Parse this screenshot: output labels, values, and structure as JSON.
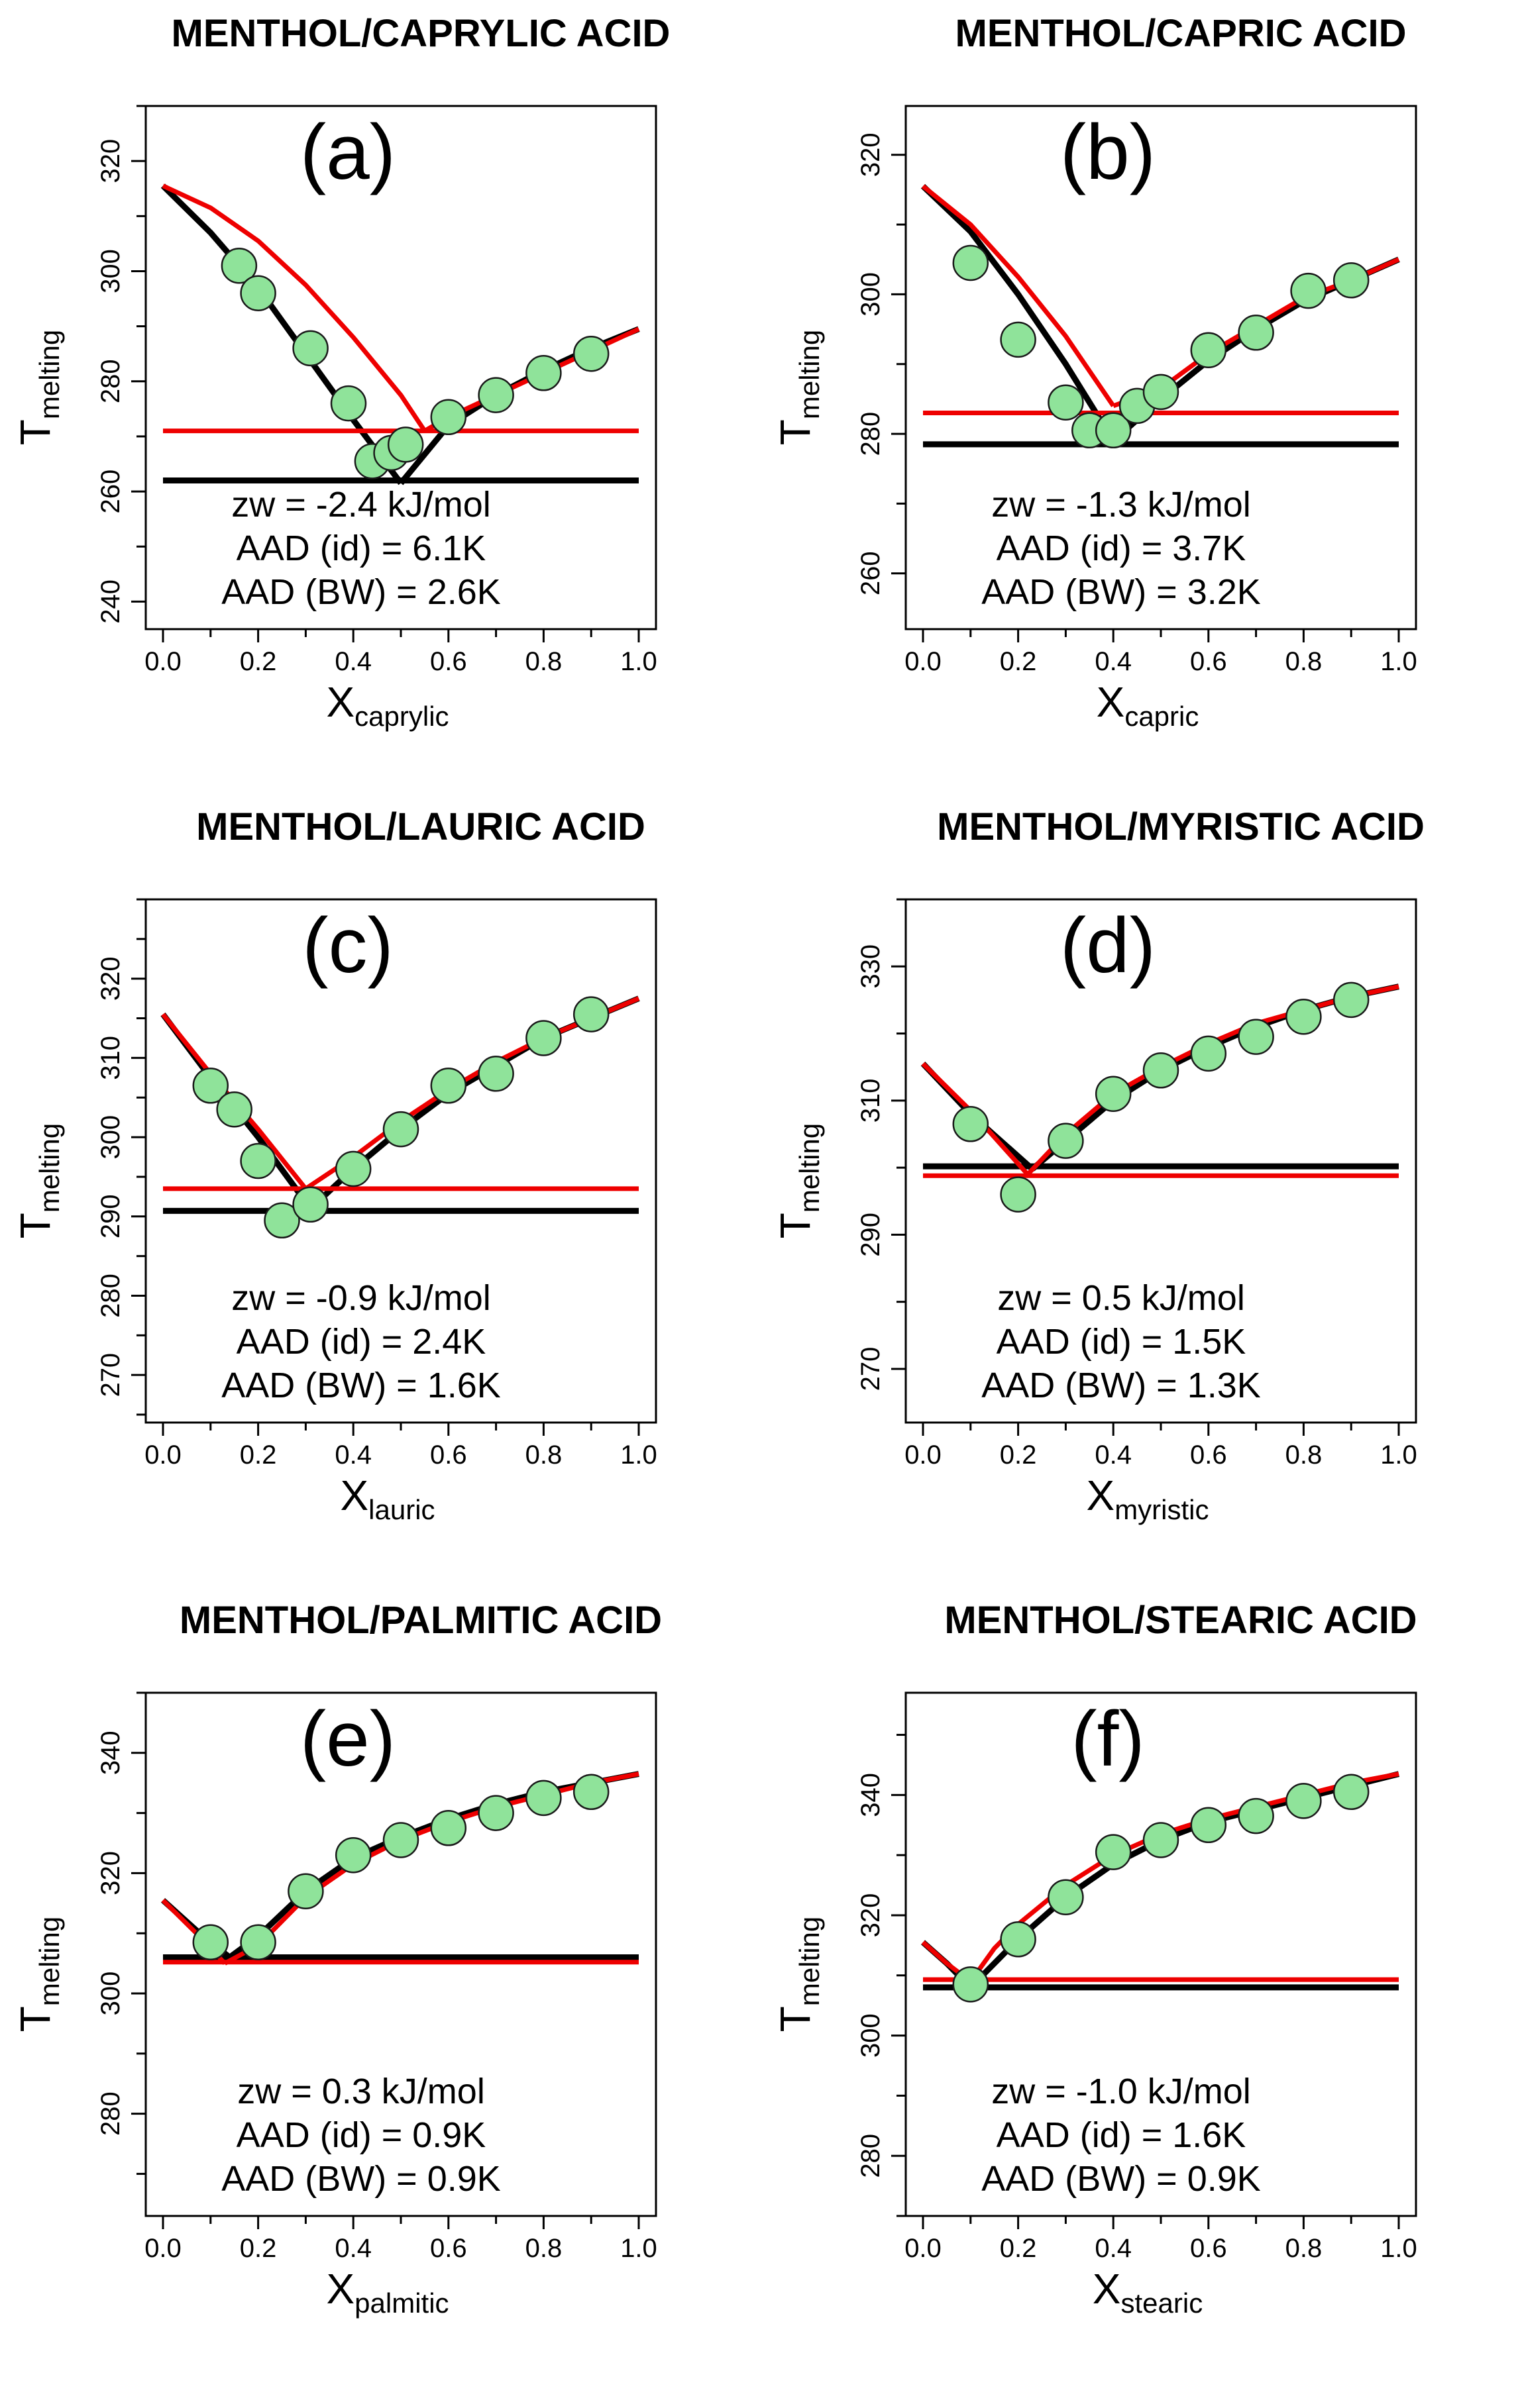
{
  "figure": {
    "layout": "3x2 grid of solid-liquid phase diagrams"
  },
  "chart_data": [
    {
      "type": "line",
      "panel": "(a)",
      "title": "MENTHOL/CAPRYLIC ACID",
      "ylabel": {
        "main": "T",
        "sub": "melting"
      },
      "xlabel": {
        "main": "X",
        "sub": "caprylic"
      },
      "xlim": [
        0,
        1
      ],
      "ylim": [
        235,
        330
      ],
      "xticks": [
        "0.0",
        "0.2",
        "0.4",
        "0.6",
        "0.8",
        "1.0"
      ],
      "yticks": [
        240,
        260,
        280,
        300,
        320
      ],
      "annotations": [
        "zw = -2.4 kJ/mol",
        "AAD (id)  = 6.1K",
        "AAD (BW)  = 2.6K"
      ],
      "series": [
        {
          "name": "ideal liquidus (menthol side)",
          "color": "#ee0000",
          "x": [
            0,
            0.1,
            0.2,
            0.3,
            0.4,
            0.5,
            0.55
          ],
          "y": [
            315.5,
            311.5,
            305.5,
            297.5,
            288,
            277.5,
            271
          ]
        },
        {
          "name": "ideal liquidus (acid side)",
          "color": "#ee0000",
          "x": [
            0.55,
            0.6,
            0.7,
            0.8,
            0.9,
            1.0
          ],
          "y": [
            271,
            273.5,
            277.5,
            281.5,
            285.5,
            289.5
          ]
        },
        {
          "name": "ideal eutectic",
          "color": "#ee0000",
          "x": [
            0.0,
            1.0
          ],
          "y": [
            271,
            271
          ]
        },
        {
          "name": "BW liquidus (menthol side)",
          "color": "#000000",
          "x": [
            0,
            0.1,
            0.2,
            0.3,
            0.4,
            0.5
          ],
          "y": [
            315.5,
            307,
            297,
            285,
            273,
            261.5
          ]
        },
        {
          "name": "BW liquidus (acid side)",
          "color": "#000000",
          "x": [
            0.5,
            0.6,
            0.7,
            0.8,
            0.9,
            1.0
          ],
          "y": [
            261.5,
            272,
            277.5,
            282,
            286,
            289.5
          ]
        },
        {
          "name": "BW eutectic",
          "color": "#000000",
          "x": [
            0.0,
            1.0
          ],
          "y": [
            262,
            262
          ]
        },
        {
          "name": "experimental",
          "type": "scatter",
          "color": "#8fe39a",
          "x": [
            0.16,
            0.2,
            0.31,
            0.39,
            0.44,
            0.48,
            0.51,
            0.6,
            0.7,
            0.8,
            0.9
          ],
          "y": [
            301,
            296,
            286,
            276,
            265.5,
            267,
            268.5,
            273.5,
            277.5,
            281.5,
            285
          ]
        }
      ]
    },
    {
      "type": "line",
      "panel": "(b)",
      "title": "MENTHOL/CAPRIC ACID",
      "ylabel": {
        "main": "T",
        "sub": "melting"
      },
      "xlabel": {
        "main": "X",
        "sub": "capric"
      },
      "xlim": [
        0,
        1
      ],
      "ylim": [
        252,
        327
      ],
      "xticks": [
        "0.0",
        "0.2",
        "0.4",
        "0.6",
        "0.8",
        "1.0"
      ],
      "yticks": [
        260,
        280,
        300,
        320
      ],
      "annotations": [
        "zw = -1.3 kJ/mol",
        "AAD (id)  = 3.7K",
        "AAD (BW)  = 3.2K"
      ],
      "series": [
        {
          "name": "ideal liquidus (menthol side)",
          "color": "#ee0000",
          "x": [
            0,
            0.1,
            0.2,
            0.3,
            0.4
          ],
          "y": [
            315.5,
            310,
            302.5,
            294,
            284
          ]
        },
        {
          "name": "ideal liquidus (acid side)",
          "color": "#ee0000",
          "x": [
            0.4,
            0.5,
            0.6,
            0.7,
            0.8,
            0.9,
            1.0
          ],
          "y": [
            284,
            286.5,
            291.5,
            295.5,
            299.5,
            302,
            305
          ]
        },
        {
          "name": "ideal eutectic",
          "color": "#ee0000",
          "x": [
            0.0,
            1.0
          ],
          "y": [
            283,
            283
          ]
        },
        {
          "name": "BW liquidus (menthol side)",
          "color": "#000000",
          "x": [
            0,
            0.1,
            0.2,
            0.3,
            0.4
          ],
          "y": [
            315.5,
            309,
            300,
            290,
            279
          ]
        },
        {
          "name": "BW liquidus (acid side)",
          "color": "#000000",
          "x": [
            0.4,
            0.5,
            0.6,
            0.7,
            0.8,
            0.9,
            1.0
          ],
          "y": [
            279,
            285,
            290.5,
            295,
            299,
            302,
            305
          ]
        },
        {
          "name": "BW eutectic",
          "color": "#000000",
          "x": [
            0.0,
            1.0
          ],
          "y": [
            278.5,
            278.5
          ]
        },
        {
          "name": "experimental",
          "type": "scatter",
          "color": "#8fe39a",
          "x": [
            0.1,
            0.2,
            0.3,
            0.35,
            0.4,
            0.45,
            0.5,
            0.6,
            0.7,
            0.81,
            0.9
          ],
          "y": [
            304.5,
            293.5,
            284.5,
            280.5,
            280.5,
            284,
            286,
            292,
            294.5,
            300.5,
            302
          ]
        }
      ]
    },
    {
      "type": "line",
      "panel": "(c)",
      "title": "MENTHOL/LAURIC ACID",
      "ylabel": {
        "main": "T",
        "sub": "melting"
      },
      "xlabel": {
        "main": "X",
        "sub": "lauric"
      },
      "xlim": [
        0,
        1
      ],
      "ylim": [
        264,
        330
      ],
      "xticks": [
        "0.0",
        "0.2",
        "0.4",
        "0.6",
        "0.8",
        "1.0"
      ],
      "yticks": [
        270,
        280,
        290,
        300,
        310,
        320
      ],
      "annotations": [
        "zw = -0.9 kJ/mol",
        "AAD (id)  = 2.4K",
        "AAD (BW)  = 1.6K"
      ],
      "series": [
        {
          "name": "ideal liquidus (menthol side)",
          "color": "#ee0000",
          "x": [
            0,
            0.1,
            0.2,
            0.3
          ],
          "y": [
            315.5,
            308,
            301,
            293.5
          ]
        },
        {
          "name": "ideal liquidus (acid side)",
          "color": "#ee0000",
          "x": [
            0.3,
            0.4,
            0.5,
            0.6,
            0.7,
            0.8,
            0.9,
            1.0
          ],
          "y": [
            293.5,
            297.5,
            302,
            306,
            309.5,
            312.5,
            315,
            317.5
          ]
        },
        {
          "name": "ideal eutectic",
          "color": "#ee0000",
          "x": [
            0.0,
            1.0
          ],
          "y": [
            293.5,
            293.5
          ]
        },
        {
          "name": "BW liquidus (menthol side)",
          "color": "#000000",
          "x": [
            0,
            0.1,
            0.2,
            0.31
          ],
          "y": [
            315.5,
            307.5,
            300,
            291
          ]
        },
        {
          "name": "BW liquidus (acid side)",
          "color": "#000000",
          "x": [
            0.31,
            0.4,
            0.5,
            0.6,
            0.7,
            0.8,
            0.9,
            1.0
          ],
          "y": [
            291,
            296,
            301,
            305.5,
            309,
            312.5,
            315,
            317.5
          ]
        },
        {
          "name": "BW eutectic",
          "color": "#000000",
          "x": [
            0.0,
            1.0
          ],
          "y": [
            290.7,
            290.7
          ]
        },
        {
          "name": "experimental",
          "type": "scatter",
          "color": "#8fe39a",
          "x": [
            0.1,
            0.15,
            0.2,
            0.25,
            0.31,
            0.4,
            0.5,
            0.6,
            0.7,
            0.8,
            0.9
          ],
          "y": [
            306.5,
            303.5,
            297,
            289.5,
            291.5,
            296,
            301,
            306.5,
            308,
            312.5,
            315.5
          ]
        }
      ]
    },
    {
      "type": "line",
      "panel": "(d)",
      "title": "MENTHOL/MYRISTIC ACID",
      "ylabel": {
        "main": "T",
        "sub": "melting"
      },
      "xlabel": {
        "main": "X",
        "sub": "myristic"
      },
      "xlim": [
        0,
        1
      ],
      "ylim": [
        262,
        340
      ],
      "xticks": [
        "0.0",
        "0.2",
        "0.4",
        "0.6",
        "0.8",
        "1.0"
      ],
      "yticks": [
        270,
        290,
        310,
        330
      ],
      "annotations": [
        "zw = 0.5 kJ/mol",
        "AAD (id)  = 1.5K",
        "AAD (BW)  = 1.3K"
      ],
      "series": [
        {
          "name": "ideal liquidus (menthol side)",
          "color": "#ee0000",
          "x": [
            0,
            0.1,
            0.22
          ],
          "y": [
            315.5,
            308.5,
            299
          ]
        },
        {
          "name": "ideal liquidus (acid side)",
          "color": "#ee0000",
          "x": [
            0.22,
            0.3,
            0.4,
            0.5,
            0.6,
            0.7,
            0.8,
            0.9,
            1.0
          ],
          "y": [
            299,
            305,
            311,
            315,
            318.5,
            321.5,
            323.5,
            325.5,
            327
          ]
        },
        {
          "name": "ideal eutectic",
          "color": "#ee0000",
          "x": [
            0.0,
            1.0
          ],
          "y": [
            298.8,
            298.8
          ]
        },
        {
          "name": "BW liquidus (menthol side)",
          "color": "#000000",
          "x": [
            0,
            0.1,
            0.23
          ],
          "y": [
            315.5,
            308,
            299.8
          ]
        },
        {
          "name": "BW liquidus (acid side)",
          "color": "#000000",
          "x": [
            0.23,
            0.3,
            0.4,
            0.5,
            0.6,
            0.7,
            0.8,
            0.9,
            1.0
          ],
          "y": [
            299.8,
            304,
            310,
            314.5,
            318,
            321,
            323.5,
            325.5,
            327
          ]
        },
        {
          "name": "BW eutectic",
          "color": "#000000",
          "x": [
            0.0,
            1.0
          ],
          "y": [
            300.2,
            300.2
          ]
        },
        {
          "name": "experimental",
          "type": "scatter",
          "color": "#8fe39a",
          "x": [
            0.1,
            0.2,
            0.3,
            0.4,
            0.5,
            0.6,
            0.7,
            0.8,
            0.9
          ],
          "y": [
            306.5,
            296,
            304,
            311,
            314.5,
            317,
            319.5,
            322.5,
            325
          ]
        }
      ]
    },
    {
      "type": "line",
      "panel": "(e)",
      "title": "MENTHOL/PALMITIC ACID",
      "ylabel": {
        "main": "T",
        "sub": "melting"
      },
      "xlabel": {
        "main": "X",
        "sub": "palmitic"
      },
      "xlim": [
        0,
        1
      ],
      "ylim": [
        263,
        350
      ],
      "xticks": [
        "0.0",
        "0.2",
        "0.4",
        "0.6",
        "0.8",
        "1.0"
      ],
      "yticks": [
        280,
        300,
        320,
        340
      ],
      "annotations": [
        "zw = 0.3 kJ/mol",
        "AAD (id)  = 0.9K",
        "AAD (BW)  = 0.9K"
      ],
      "series": [
        {
          "name": "ideal liquidus (menthol side)",
          "color": "#ee0000",
          "x": [
            0,
            0.07,
            0.13
          ],
          "y": [
            315.5,
            310,
            305
          ]
        },
        {
          "name": "ideal liquidus (acid side)",
          "color": "#ee0000",
          "x": [
            0.13,
            0.2,
            0.3,
            0.4,
            0.5,
            0.6,
            0.7,
            0.8,
            0.9,
            1.0
          ],
          "y": [
            305,
            308,
            316,
            321.5,
            325.5,
            328.5,
            331,
            333,
            335,
            336.5
          ]
        },
        {
          "name": "ideal eutectic",
          "color": "#ee0000",
          "x": [
            0.0,
            1.0
          ],
          "y": [
            305.2,
            305.2
          ]
        },
        {
          "name": "BW liquidus (menthol side)",
          "color": "#000000",
          "x": [
            0,
            0.07,
            0.14
          ],
          "y": [
            315.5,
            310.5,
            306
          ]
        },
        {
          "name": "BW liquidus (acid side)",
          "color": "#000000",
          "x": [
            0.14,
            0.2,
            0.3,
            0.4,
            0.5,
            0.6,
            0.7,
            0.8,
            0.9,
            1.0
          ],
          "y": [
            306,
            309.5,
            317,
            322.5,
            326,
            329,
            331.5,
            333.5,
            335,
            336.5
          ]
        },
        {
          "name": "BW eutectic",
          "color": "#000000",
          "x": [
            0.0,
            1.0
          ],
          "y": [
            306,
            306
          ]
        },
        {
          "name": "experimental",
          "type": "scatter",
          "color": "#8fe39a",
          "x": [
            0.1,
            0.2,
            0.3,
            0.4,
            0.5,
            0.6,
            0.7,
            0.8,
            0.9
          ],
          "y": [
            308.5,
            308.5,
            317,
            323,
            325.5,
            327.5,
            330,
            332.5,
            333.5
          ]
        }
      ]
    },
    {
      "type": "line",
      "panel": "(f)",
      "title": "MENTHOL/STEARIC ACID",
      "ylabel": {
        "main": "T",
        "sub": "melting"
      },
      "xlabel": {
        "main": "X",
        "sub": "stearic"
      },
      "xlim": [
        0,
        1
      ],
      "ylim": [
        270,
        357
      ],
      "xticks": [
        "0.0",
        "0.2",
        "0.4",
        "0.6",
        "0.8",
        "1.0"
      ],
      "yticks": [
        280,
        300,
        320,
        340
      ],
      "annotations": [
        "zw = -1.0 kJ/mol",
        "AAD (id)  = 1.6K",
        "AAD (BW)  = 0.9K"
      ],
      "series": [
        {
          "name": "ideal liquidus (menthol side)",
          "color": "#ee0000",
          "x": [
            0,
            0.05,
            0.1
          ],
          "y": [
            315.5,
            312,
            309
          ]
        },
        {
          "name": "ideal liquidus (acid side)",
          "color": "#ee0000",
          "x": [
            0.1,
            0.15,
            0.2,
            0.3,
            0.4,
            0.5,
            0.6,
            0.7,
            0.8,
            0.9,
            1.0
          ],
          "y": [
            309,
            314.5,
            318.5,
            325,
            330,
            333.5,
            336,
            338,
            340,
            342,
            343.5
          ]
        },
        {
          "name": "ideal eutectic",
          "color": "#ee0000",
          "x": [
            0.0,
            1.0
          ],
          "y": [
            309.3,
            309.3
          ]
        },
        {
          "name": "BW liquidus (menthol side)",
          "color": "#000000",
          "x": [
            0,
            0.05,
            0.1
          ],
          "y": [
            315.5,
            312,
            308
          ]
        },
        {
          "name": "BW liquidus (acid side)",
          "color": "#000000",
          "x": [
            0.1,
            0.2,
            0.3,
            0.4,
            0.5,
            0.6,
            0.7,
            0.8,
            0.9,
            1.0
          ],
          "y": [
            308,
            316,
            323,
            328.5,
            332.5,
            335.5,
            337.5,
            339.5,
            341.5,
            343.5
          ]
        },
        {
          "name": "BW eutectic",
          "color": "#000000",
          "x": [
            0.0,
            1.0
          ],
          "y": [
            308,
            308
          ]
        },
        {
          "name": "experimental",
          "type": "scatter",
          "color": "#8fe39a",
          "x": [
            0.1,
            0.2,
            0.3,
            0.4,
            0.5,
            0.6,
            0.7,
            0.8,
            0.9
          ],
          "y": [
            308.5,
            316,
            323,
            330.5,
            332.5,
            335,
            336.5,
            339,
            340.5
          ]
        }
      ]
    }
  ]
}
